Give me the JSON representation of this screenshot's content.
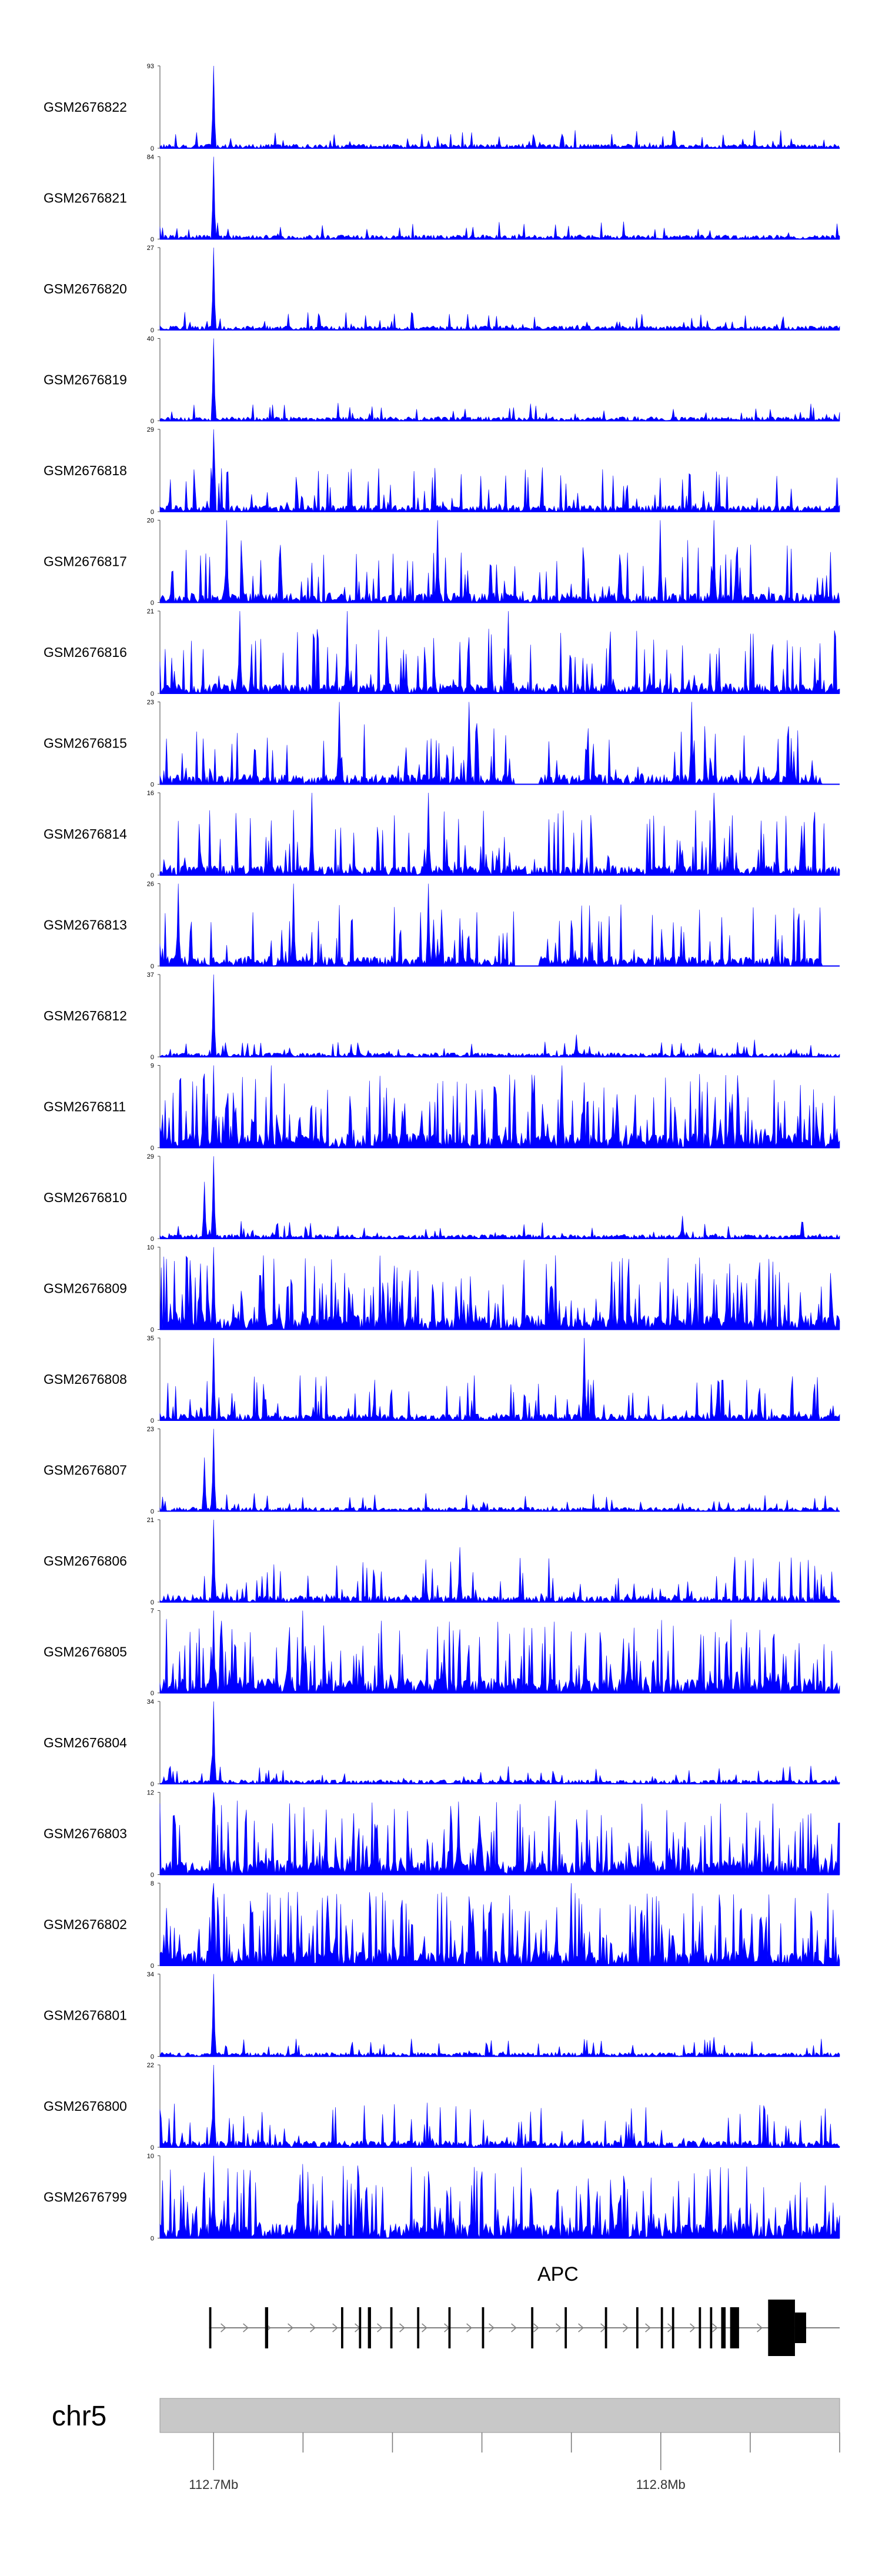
{
  "chart_data": {
    "type": "area",
    "x_range_bp": [
      112688000,
      112840000
    ],
    "series_color": "#0000ff",
    "tracks": [
      {
        "name": "GSM2676822",
        "ymax": 93,
        "ymin": 0,
        "profile": "peak-sparse",
        "peaks": [
          [
            112700000,
            93
          ]
        ]
      },
      {
        "name": "GSM2676821",
        "ymax": 84,
        "ymin": 0,
        "profile": "peak-sparse",
        "peaks": [
          [
            112700000,
            84
          ]
        ]
      },
      {
        "name": "GSM2676820",
        "ymax": 27,
        "ymin": 0,
        "profile": "peak-sparse",
        "peaks": [
          [
            112700000,
            27
          ]
        ]
      },
      {
        "name": "GSM2676819",
        "ymax": 40,
        "ymin": 0,
        "profile": "peak-sparse",
        "peaks": [
          [
            112700000,
            40
          ]
        ]
      },
      {
        "name": "GSM2676818",
        "ymax": 29,
        "ymin": 0,
        "profile": "moderate",
        "peaks": [
          [
            112700000,
            29
          ]
        ]
      },
      {
        "name": "GSM2676817",
        "ymax": 20,
        "ymin": 0,
        "profile": "noisy",
        "peaks": [
          [
            112703000,
            20
          ],
          [
            112750000,
            20
          ],
          [
            112800000,
            20
          ],
          [
            112812000,
            20
          ]
        ]
      },
      {
        "name": "GSM2676816",
        "ymax": 21,
        "ymin": 0,
        "profile": "noisy",
        "peaks": [
          [
            112706000,
            21
          ],
          [
            112730000,
            21
          ],
          [
            112766000,
            21
          ]
        ]
      },
      {
        "name": "GSM2676815",
        "ymax": 23,
        "ymin": 0,
        "profile": "noisy-gappy",
        "peaks": [
          [
            112728000,
            23
          ],
          [
            112757000,
            23
          ],
          [
            112807000,
            23
          ]
        ]
      },
      {
        "name": "GSM2676814",
        "ymax": 16,
        "ymin": 0,
        "profile": "noisy",
        "peaks": [
          [
            112722000,
            16
          ],
          [
            112748000,
            16
          ],
          [
            112812000,
            16
          ]
        ]
      },
      {
        "name": "GSM2676813",
        "ymax": 26,
        "ymin": 0,
        "profile": "noisy-gappy",
        "peaks": [
          [
            112692000,
            26
          ],
          [
            112718000,
            26
          ],
          [
            112748000,
            26
          ]
        ]
      },
      {
        "name": "GSM2676812",
        "ymax": 37,
        "ymin": 0,
        "profile": "peak-sparse",
        "peaks": [
          [
            112700000,
            37
          ],
          [
            112781000,
            10
          ]
        ]
      },
      {
        "name": "GSM2676811",
        "ymax": 9,
        "ymin": 0,
        "profile": "dense",
        "peaks": [
          [
            112700000,
            9
          ],
          [
            112713000,
            9
          ],
          [
            112778000,
            9
          ]
        ]
      },
      {
        "name": "GSM2676810",
        "ymax": 29,
        "ymin": 0,
        "profile": "peak-sparse",
        "peaks": [
          [
            112700000,
            29
          ],
          [
            112698000,
            20
          ],
          [
            112805000,
            8
          ]
        ]
      },
      {
        "name": "GSM2676809",
        "ymax": 10,
        "ymin": 0,
        "profile": "dense",
        "peaks": [
          [
            112700000,
            10
          ],
          [
            112697000,
            8
          ],
          [
            112711000,
            9
          ]
        ]
      },
      {
        "name": "GSM2676808",
        "ymax": 35,
        "ymin": 0,
        "profile": "moderate",
        "peaks": [
          [
            112700000,
            35
          ],
          [
            112783000,
            35
          ]
        ]
      },
      {
        "name": "GSM2676807",
        "ymax": 23,
        "ymin": 0,
        "profile": "peak-sparse",
        "peaks": [
          [
            112700000,
            23
          ],
          [
            112698000,
            15
          ]
        ]
      },
      {
        "name": "GSM2676806",
        "ymax": 21,
        "ymin": 0,
        "profile": "moderate",
        "peaks": [
          [
            112700000,
            21
          ],
          [
            112755000,
            14
          ]
        ]
      },
      {
        "name": "GSM2676805",
        "ymax": 7,
        "ymin": 0,
        "profile": "dense",
        "peaks": [
          [
            112700000,
            7
          ],
          [
            112720000,
            7
          ]
        ]
      },
      {
        "name": "GSM2676804",
        "ymax": 34,
        "ymin": 0,
        "profile": "peak-sparse",
        "peaks": [
          [
            112700000,
            34
          ]
        ]
      },
      {
        "name": "GSM2676803",
        "ymax": 12,
        "ymin": 0,
        "profile": "dense",
        "peaks": [
          [
            112700000,
            12
          ],
          [
            112753000,
            10
          ]
        ]
      },
      {
        "name": "GSM2676802",
        "ymax": 8,
        "ymin": 0,
        "profile": "dense",
        "peaks": [
          [
            112700000,
            8
          ],
          [
            112780000,
            8
          ]
        ]
      },
      {
        "name": "GSM2676801",
        "ymax": 34,
        "ymin": 0,
        "profile": "peak-sparse",
        "peaks": [
          [
            112700000,
            34
          ],
          [
            112812000,
            8
          ]
        ]
      },
      {
        "name": "GSM2676800",
        "ymax": 22,
        "ymin": 0,
        "profile": "moderate",
        "peaks": [
          [
            112700000,
            22
          ]
        ]
      },
      {
        "name": "GSM2676799",
        "ymax": 10,
        "ymin": 0,
        "profile": "dense",
        "peaks": [
          [
            112700000,
            10
          ],
          [
            112720000,
            9
          ]
        ]
      }
    ],
    "gene": {
      "name": "APC",
      "strand": "+",
      "start": 112699000,
      "end": 112840000,
      "exons": [
        [
          112699000,
          112699500
        ],
        [
          112711500,
          112712200
        ],
        [
          112728500,
          112729000
        ],
        [
          112732500,
          112733000
        ],
        [
          112734500,
          112735200
        ],
        [
          112739500,
          112740000
        ],
        [
          112745500,
          112746000
        ],
        [
          112752500,
          112753000
        ],
        [
          112760000,
          112760500
        ],
        [
          112771000,
          112771500
        ],
        [
          112778500,
          112779000
        ],
        [
          112787500,
          112788000
        ],
        [
          112794500,
          112795000
        ],
        [
          112800000,
          112800500
        ],
        [
          112802500,
          112803000
        ],
        [
          112808500,
          112809000
        ],
        [
          112811000,
          112811500
        ],
        [
          112813500,
          112814500
        ],
        [
          112815500,
          112817500
        ],
        [
          112824000,
          112830000
        ],
        [
          112830000,
          112832500
        ]
      ]
    },
    "ideogram": {
      "chrom": "chr5",
      "ticks_bp": [
        112700000,
        112720000,
        112740000,
        112760000,
        112780000,
        112800000,
        112820000,
        112840000
      ],
      "labels": [
        {
          "bp": 112700000,
          "text": "112.7Mb"
        },
        {
          "bp": 112800000,
          "text": "112.8Mb"
        }
      ]
    }
  }
}
